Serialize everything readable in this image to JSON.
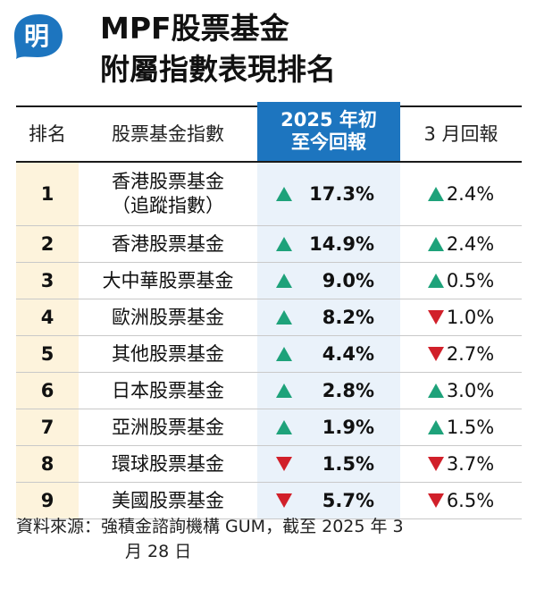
{
  "header": {
    "logo_char": "明",
    "title_line1": "MPF股票基金",
    "title_line2": "附屬指數表現排名"
  },
  "table": {
    "col_rank": "排名",
    "col_name": "股票基金指數",
    "col_ytd_line1": "2025 年初",
    "col_ytd_line2": "至今回報",
    "col_march": "3 月回報",
    "rows": [
      {
        "rank": "1",
        "name": "香港股票基金",
        "name2": "（追蹤指數）",
        "ytd": "17.3%",
        "ytd_dir": "up",
        "march": "2.4%",
        "march_dir": "up"
      },
      {
        "rank": "2",
        "name": "香港股票基金",
        "name2": "",
        "ytd": "14.9%",
        "ytd_dir": "up",
        "march": "2.4%",
        "march_dir": "up"
      },
      {
        "rank": "3",
        "name": "大中華股票基金",
        "name2": "",
        "ytd": "9.0%",
        "ytd_dir": "up",
        "march": "0.5%",
        "march_dir": "up"
      },
      {
        "rank": "4",
        "name": "歐洲股票基金",
        "name2": "",
        "ytd": "8.2%",
        "ytd_dir": "up",
        "march": "1.0%",
        "march_dir": "down"
      },
      {
        "rank": "5",
        "name": "其他股票基金",
        "name2": "",
        "ytd": "4.4%",
        "ytd_dir": "up",
        "march": "2.7%",
        "march_dir": "down"
      },
      {
        "rank": "6",
        "name": "日本股票基金",
        "name2": "",
        "ytd": "2.8%",
        "ytd_dir": "up",
        "march": "3.0%",
        "march_dir": "up"
      },
      {
        "rank": "7",
        "name": "亞洲股票基金",
        "name2": "",
        "ytd": "1.9%",
        "ytd_dir": "up",
        "march": "1.5%",
        "march_dir": "up"
      },
      {
        "rank": "8",
        "name": "環球股票基金",
        "name2": "",
        "ytd": "1.5%",
        "ytd_dir": "down",
        "march": "3.7%",
        "march_dir": "down"
      },
      {
        "rank": "9",
        "name": "美國股票基金",
        "name2": "",
        "ytd": "5.7%",
        "ytd_dir": "down",
        "march": "6.5%",
        "march_dir": "down"
      }
    ]
  },
  "source": {
    "line1": "資料來源：強積金諮詢機構 GUM，截至 2025 年 3",
    "line2": "月 28 日"
  },
  "colors": {
    "header_blue": "#1d75bf",
    "up_green": "#1ea27a",
    "down_red": "#d1202a",
    "rank_bg": "#fdf3dc",
    "ytd_bg": "#eaf2fa"
  }
}
